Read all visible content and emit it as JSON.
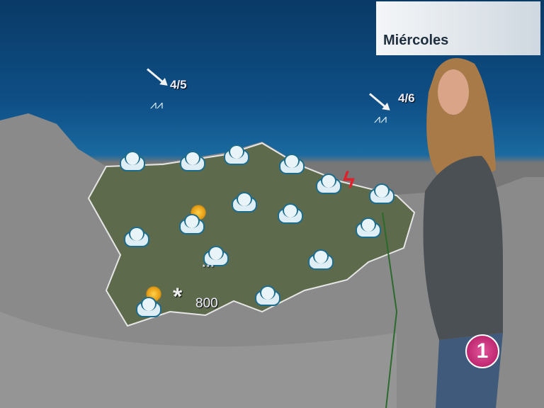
{
  "header": {
    "day": "Miércoles"
  },
  "sea": [
    {
      "wind": "4/5",
      "wind_dir": "north-west to south-east",
      "icon": "sea-waves-icon"
    },
    {
      "wind": "4/6",
      "wind_dir": "north-west to south-east",
      "icon": "sea-waves-icon"
    }
  ],
  "map": {
    "snow_level": "800",
    "icons": [
      "cloud-icon",
      "cloud-icon",
      "cloud-icon",
      "cloud-icon",
      "cloud-icon",
      "cloud-icon",
      "cloud-icon",
      "cloud-icon",
      "partly-cloudy-icon",
      "cloud-icon",
      "cloud-icon",
      "cloud-snow-icon",
      "cloud-icon",
      "cloud-icon",
      "partly-cloudy-icon",
      "lightning-icon",
      "snowflake-icon"
    ],
    "colors": {
      "sea": "#0e4f86",
      "region": "#5a6a4a",
      "lightning": "#e0202a"
    }
  },
  "channel_logo": "1"
}
